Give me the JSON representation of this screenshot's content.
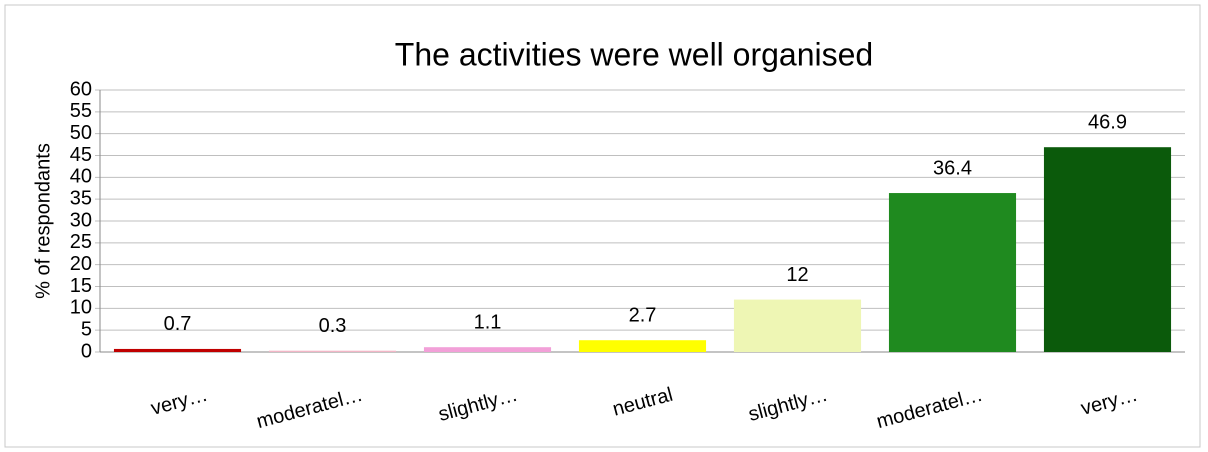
{
  "chart_data": {
    "type": "bar",
    "title": "The activities were well organised",
    "y_label": "% of respondants",
    "categories": [
      "very…",
      "moderatel…",
      "slightly…",
      "neutral",
      "slightly…",
      "moderatel…",
      "very…"
    ],
    "values": [
      0.7,
      0.3,
      1.1,
      2.7,
      12,
      36.4,
      46.9
    ],
    "colors": [
      "#c00000",
      "#f2b6c6",
      "#f2a0d8",
      "#ffff00",
      "#eef6b4",
      "#1f8a1f",
      "#0b5a0b"
    ],
    "ylim": [
      0,
      60
    ],
    "yticks": [
      0,
      5,
      10,
      15,
      20,
      25,
      30,
      35,
      40,
      45,
      50,
      55,
      60
    ],
    "grid": true
  }
}
